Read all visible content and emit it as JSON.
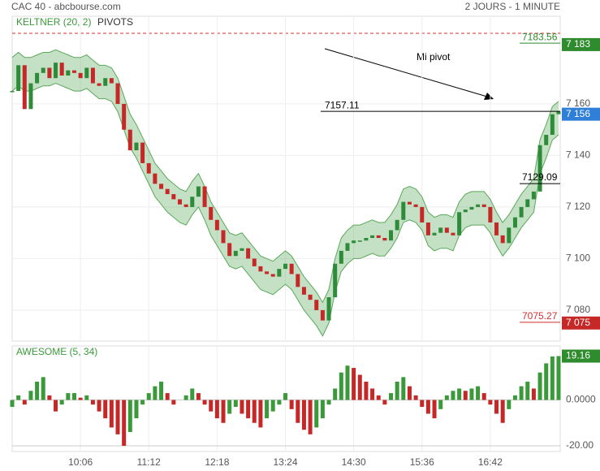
{
  "header": {
    "title": "CAC 40 - abcbourse.com",
    "period": "2 JOURS - 1 MINUTE"
  },
  "chart_data": [
    {
      "type": "candlestick",
      "legend": [
        "KELTNER (20, 2)",
        "PIVOTS"
      ],
      "values": [
        7165,
        7175,
        7158,
        7168,
        7172,
        7174,
        7170,
        7176,
        7171,
        7173,
        7172,
        7170,
        7174,
        7168,
        7167,
        7170,
        7168,
        7160,
        7150,
        7142,
        7145,
        7137,
        7133,
        7129,
        7127,
        7125,
        7123,
        7121,
        7120,
        7124,
        7128,
        7120,
        7115,
        7111,
        7106,
        7101,
        7103,
        7104,
        7100,
        7097,
        7095,
        7094,
        7093,
        7096,
        7098,
        7094,
        7089,
        7086,
        7084,
        7080,
        7076,
        7085,
        7098,
        7103,
        7106,
        7107,
        7107,
        7108,
        7109,
        7108,
        7107,
        7111,
        7115,
        7122,
        7121,
        7120,
        7114,
        7109,
        7110,
        7112,
        7110,
        7109,
        7118,
        7119,
        7120,
        7121,
        7120,
        7114,
        7109,
        7106,
        7112,
        7116,
        7120,
        7123,
        7126,
        7144,
        7148,
        7156,
        7157
      ],
      "band_upper": [
        7178,
        7180,
        7178,
        7178,
        7179,
        7180,
        7180,
        7181,
        7180,
        7179,
        7178,
        7178,
        7179,
        7177,
        7175,
        7175,
        7174,
        7170,
        7163,
        7156,
        7152,
        7147,
        7142,
        7137,
        7134,
        7131,
        7129,
        7127,
        7126,
        7130,
        7133,
        7128,
        7122,
        7118,
        7114,
        7110,
        7109,
        7110,
        7107,
        7104,
        7101,
        7100,
        7099,
        7101,
        7103,
        7101,
        7097,
        7093,
        7090,
        7087,
        7083,
        7088,
        7100,
        7108,
        7111,
        7113,
        7113,
        7114,
        7115,
        7114,
        7114,
        7117,
        7121,
        7127,
        7128,
        7127,
        7124,
        7118,
        7116,
        7117,
        7117,
        7116,
        7122,
        7125,
        7126,
        7126,
        7126,
        7123,
        7118,
        7114,
        7117,
        7121,
        7125,
        7128,
        7131,
        7146,
        7152,
        7159,
        7161
      ],
      "band_lower": [
        7165,
        7167,
        7165,
        7165,
        7166,
        7167,
        7167,
        7168,
        7167,
        7166,
        7165,
        7165,
        7166,
        7164,
        7162,
        7162,
        7161,
        7157,
        7150,
        7143,
        7139,
        7134,
        7129,
        7124,
        7121,
        7118,
        7116,
        7114,
        7113,
        7117,
        7120,
        7115,
        7109,
        7105,
        7101,
        7097,
        7096,
        7097,
        7094,
        7091,
        7088,
        7087,
        7086,
        7088,
        7090,
        7088,
        7084,
        7080,
        7077,
        7074,
        7070,
        7075,
        7087,
        7095,
        7098,
        7100,
        7100,
        7101,
        7102,
        7101,
        7101,
        7104,
        7108,
        7114,
        7115,
        7114,
        7111,
        7105,
        7103,
        7104,
        7104,
        7103,
        7109,
        7112,
        7113,
        7113,
        7113,
        7110,
        7105,
        7101,
        7104,
        7108,
        7112,
        7115,
        7118,
        7133,
        7139,
        7146,
        7148
      ],
      "up_color": "#2e8b3a",
      "down_color": "#c62828",
      "band_color": "#5aa85a",
      "ylim": [
        7068,
        7194
      ],
      "yticks": [
        {
          "value": 7160,
          "label": "7 160"
        },
        {
          "value": 7140,
          "label": "7 140"
        },
        {
          "value": 7120,
          "label": "7 120"
        },
        {
          "value": 7100,
          "label": "7 100"
        },
        {
          "value": 7080,
          "label": "7 080"
        }
      ],
      "pivots": [
        {
          "value": 7183.56,
          "color": "#2e8b2e"
        },
        {
          "value": 7157.11,
          "color": "#000000"
        },
        {
          "value": 7129.09,
          "color": "#000000"
        },
        {
          "value": 7075.27,
          "color": "#d32f2f"
        }
      ],
      "price_tags": [
        {
          "value": 7183,
          "label": "7 183",
          "color": "#2e8b2e"
        },
        {
          "value": 7156,
          "label": "7 156",
          "color": "#2f7fd8"
        },
        {
          "value": 7075,
          "label": "7 075",
          "color": "#c62828"
        }
      ],
      "annotation": "Mi pivot"
    },
    {
      "type": "bar",
      "title": "AWESOME (5, 34)",
      "categories": [
        null,
        null,
        null,
        null,
        null,
        null,
        null,
        null,
        null,
        null,
        null,
        "10:06",
        null,
        null,
        null,
        null,
        null,
        null,
        null,
        null,
        null,
        null,
        "11:12",
        null,
        null,
        null,
        null,
        null,
        null,
        null,
        null,
        null,
        null,
        "12:18",
        null,
        null,
        null,
        null,
        null,
        null,
        null,
        null,
        null,
        null,
        "13:24",
        null,
        null,
        null,
        null,
        null,
        null,
        null,
        null,
        null,
        null,
        "14:30",
        null,
        null,
        null,
        null,
        null,
        null,
        null,
        null,
        null,
        null,
        "15:36",
        null,
        null,
        null,
        null,
        null,
        null,
        null,
        null,
        null,
        null,
        "16:42",
        null,
        null,
        null,
        null,
        null,
        null,
        null,
        null,
        null,
        null,
        null
      ],
      "values": [
        -3,
        2,
        -2,
        4,
        8,
        10,
        2,
        -5,
        -2,
        3,
        3,
        1,
        2,
        -2,
        -5,
        -8,
        -12,
        -15,
        -20,
        -14,
        -8,
        -2,
        3,
        6,
        8,
        3,
        -2,
        0,
        2,
        5,
        3,
        -2,
        -5,
        -8,
        -10,
        -6,
        -3,
        -6,
        -8,
        -10,
        -12,
        -8,
        -5,
        -2,
        3,
        -4,
        -10,
        -13,
        -15,
        -12,
        -8,
        -2,
        5,
        12,
        15,
        14,
        11,
        8,
        5,
        2,
        -2,
        3,
        8,
        10,
        6,
        2,
        -3,
        -6,
        -8,
        -4,
        2,
        4,
        5,
        4,
        5,
        6,
        3,
        -2,
        -6,
        -10,
        -4,
        2,
        6,
        8,
        5,
        12,
        16,
        19,
        19.16
      ],
      "up_color": "#3a9a3a",
      "down_color": "#c62828",
      "ylim": [
        -22.5,
        23.6
      ],
      "yticks": [
        {
          "value": 0,
          "label": "0.0000"
        },
        {
          "value": -20,
          "label": "-20.00"
        }
      ],
      "last_tag": {
        "value": 19.16,
        "color": "#2e8b2e"
      }
    }
  ]
}
